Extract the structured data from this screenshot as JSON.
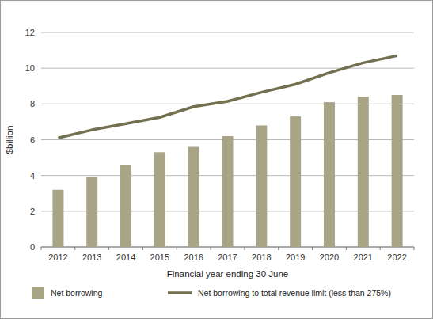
{
  "chart_data": {
    "type": "bar",
    "x_label": "Financial year ending 30 June",
    "y_label": "$billion",
    "categories": [
      "2012",
      "2013",
      "2014",
      "2015",
      "2016",
      "2017",
      "2018",
      "2019",
      "2020",
      "2021",
      "2022"
    ],
    "series": [
      {
        "name": "Net borrowing",
        "type": "bar",
        "color": "#a9a485",
        "values": [
          3.2,
          3.9,
          4.6,
          5.3,
          5.6,
          6.2,
          6.8,
          7.3,
          8.1,
          8.4,
          8.5
        ]
      },
      {
        "name": "Net borrowing to total revenue limit (less than 275%)",
        "type": "line",
        "color": "#72704f",
        "values": [
          6.1,
          6.55,
          6.9,
          7.25,
          7.85,
          8.15,
          8.65,
          9.1,
          9.75,
          10.3,
          10.7
        ]
      }
    ],
    "ylim": [
      0,
      12
    ],
    "yticks": [
      0,
      2,
      4,
      6,
      8,
      10,
      12
    ],
    "grid": true,
    "legend": "bottom"
  }
}
